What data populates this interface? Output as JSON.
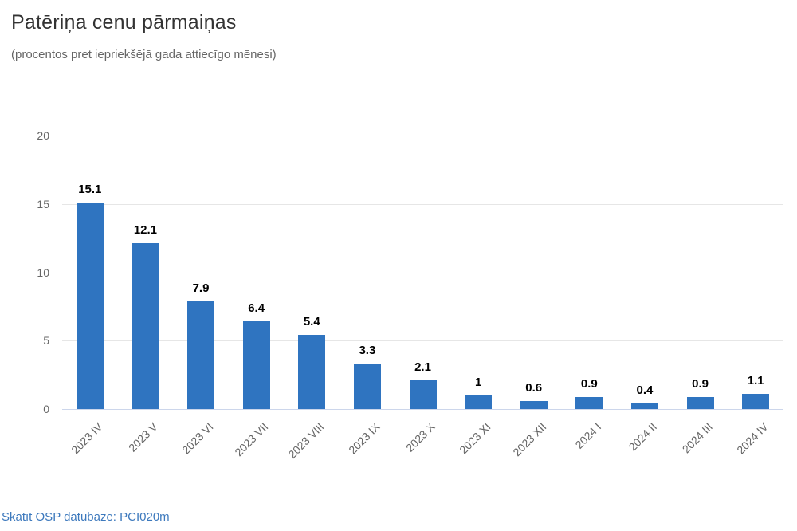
{
  "header": {
    "title": "Patēriņa cenu pārmaiņas",
    "subtitle": "(procentos pret iepriekšējā gada attiecīgo mēnesi)"
  },
  "footer": {
    "link_label": "Skatīt OSP datubāzē: PCI020m"
  },
  "colors": {
    "bar": "#2f74c0",
    "grid": "#e6e6e6",
    "axis_line": "#ccd6eb",
    "axis_text": "#666666",
    "value_label": "#000000",
    "title": "#333333",
    "subtitle": "#666666",
    "link": "#3d79bd"
  },
  "chart_data": {
    "type": "bar",
    "title": "Patēriņa cenu pārmaiņas",
    "subtitle": "(procentos pret iepriekšējā gada attiecīgo mēnesi)",
    "categories": [
      "2023 IV",
      "2023 V",
      "2023 VI",
      "2023 VII",
      "2023 VIII",
      "2023 IX",
      "2023 X",
      "2023 XI",
      "2023 XII",
      "2024 I",
      "2024 II",
      "2024 III",
      "2024 IV"
    ],
    "values": [
      15.1,
      12.1,
      7.9,
      6.4,
      5.4,
      3.3,
      2.1,
      1,
      0.6,
      0.9,
      0.4,
      0.9,
      1.1
    ],
    "value_labels": [
      "15.1",
      "12.1",
      "7.9",
      "6.4",
      "5.4",
      "3.3",
      "2.1",
      "1",
      "0.6",
      "0.9",
      "0.4",
      "0.9",
      "1.1"
    ],
    "xlabel": "",
    "ylabel": "",
    "ylim": [
      0,
      20
    ],
    "yticks": [
      0,
      5,
      10,
      15,
      20
    ],
    "grid": true,
    "legend": "none",
    "data_labels": true
  }
}
